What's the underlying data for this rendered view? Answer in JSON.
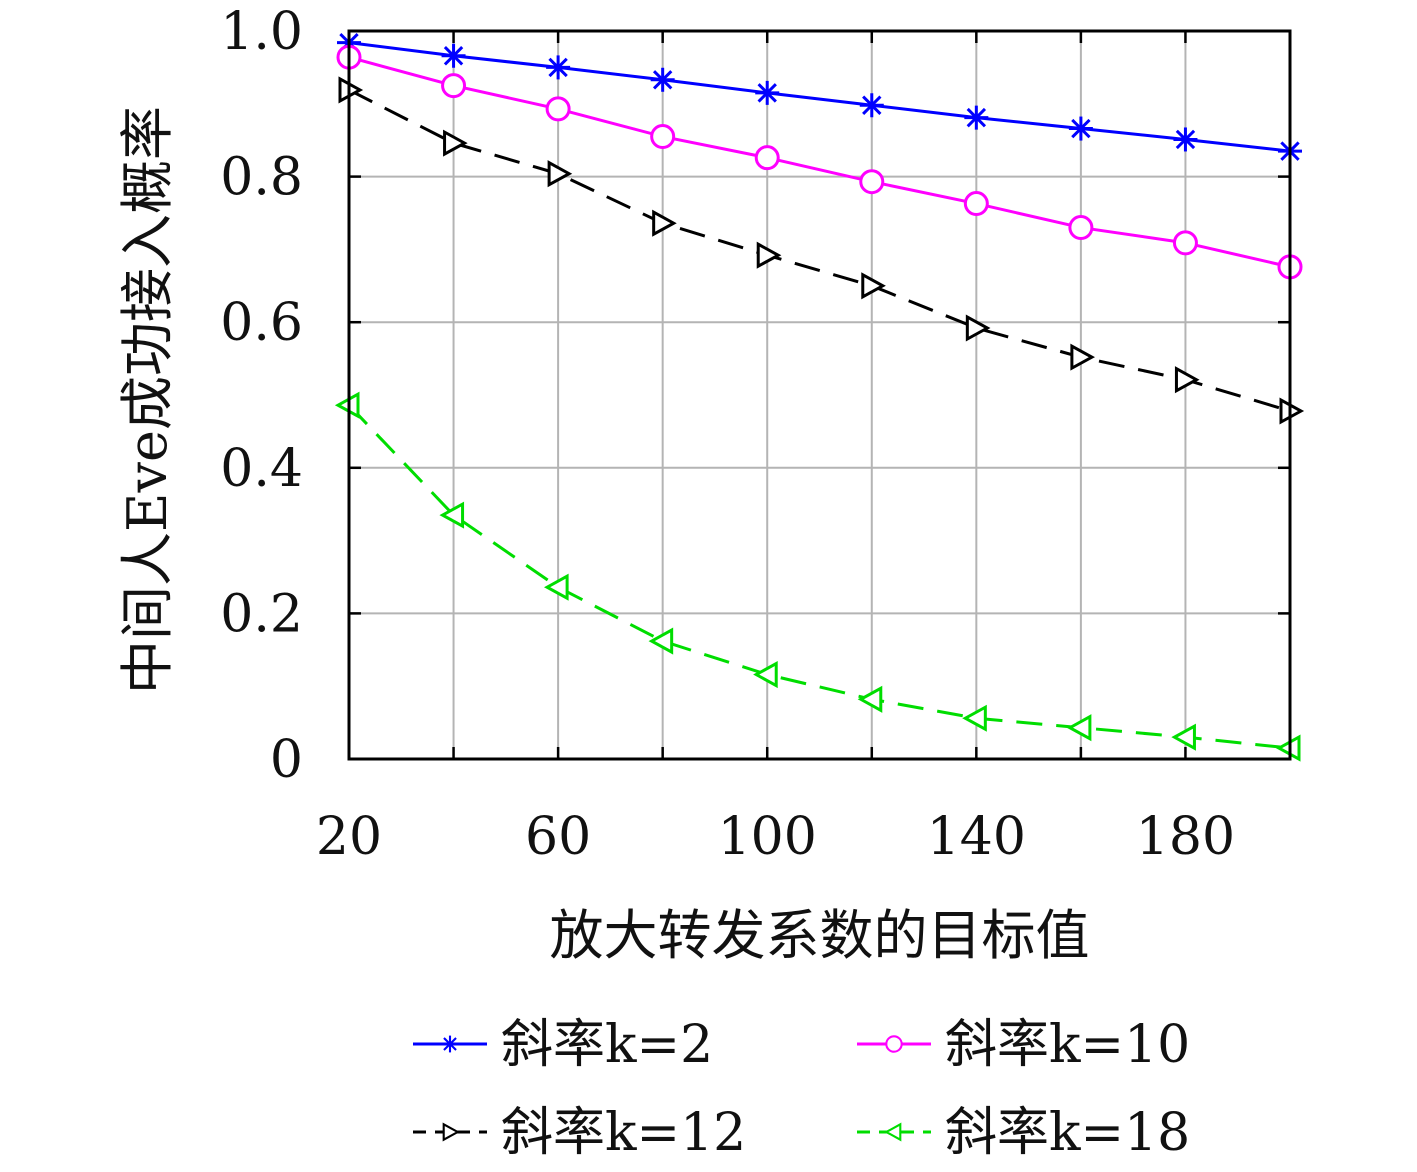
{
  "chart_data": {
    "type": "line",
    "title": "",
    "xlabel": "放大转发系数的目标值",
    "ylabel": "中间人Eve成功接入概率",
    "xlim": [
      20,
      200
    ],
    "ylim": [
      0,
      1.0
    ],
    "x_ticks": [
      "20",
      "60",
      "100",
      "140",
      "180"
    ],
    "x_tick_values": [
      20,
      60,
      100,
      140,
      180
    ],
    "y_ticks": [
      "0",
      "0.2",
      "0.4",
      "0.6",
      "0.8",
      "1.0"
    ],
    "y_tick_values": [
      0,
      0.2,
      0.4,
      0.6,
      0.8,
      1.0
    ],
    "grid": true,
    "legend_position": "bottom",
    "x": [
      20,
      40,
      60,
      80,
      100,
      120,
      140,
      160,
      180,
      200
    ],
    "series": [
      {
        "name": "斜率k=2",
        "color": "#0000ff",
        "line_style": "solid",
        "marker": "asterisk",
        "values": [
          0.984,
          0.966,
          0.95,
          0.933,
          0.915,
          0.898,
          0.881,
          0.866,
          0.851,
          0.835
        ]
      },
      {
        "name": "斜率k=10",
        "color": "#ff00ff",
        "line_style": "solid",
        "marker": "circle",
        "values": [
          0.964,
          0.925,
          0.893,
          0.855,
          0.826,
          0.793,
          0.763,
          0.73,
          0.709,
          0.676
        ]
      },
      {
        "name": "斜率k=12",
        "color": "#000000",
        "line_style": "dashed",
        "marker": "triangle-right",
        "values": [
          0.919,
          0.846,
          0.804,
          0.736,
          0.692,
          0.65,
          0.592,
          0.552,
          0.521,
          0.478
        ]
      },
      {
        "name": "斜率k=18",
        "color": "#00dd00",
        "line_style": "dashed",
        "marker": "triangle-left",
        "values": [
          0.486,
          0.335,
          0.236,
          0.162,
          0.116,
          0.082,
          0.056,
          0.043,
          0.03,
          0.015
        ]
      }
    ]
  }
}
